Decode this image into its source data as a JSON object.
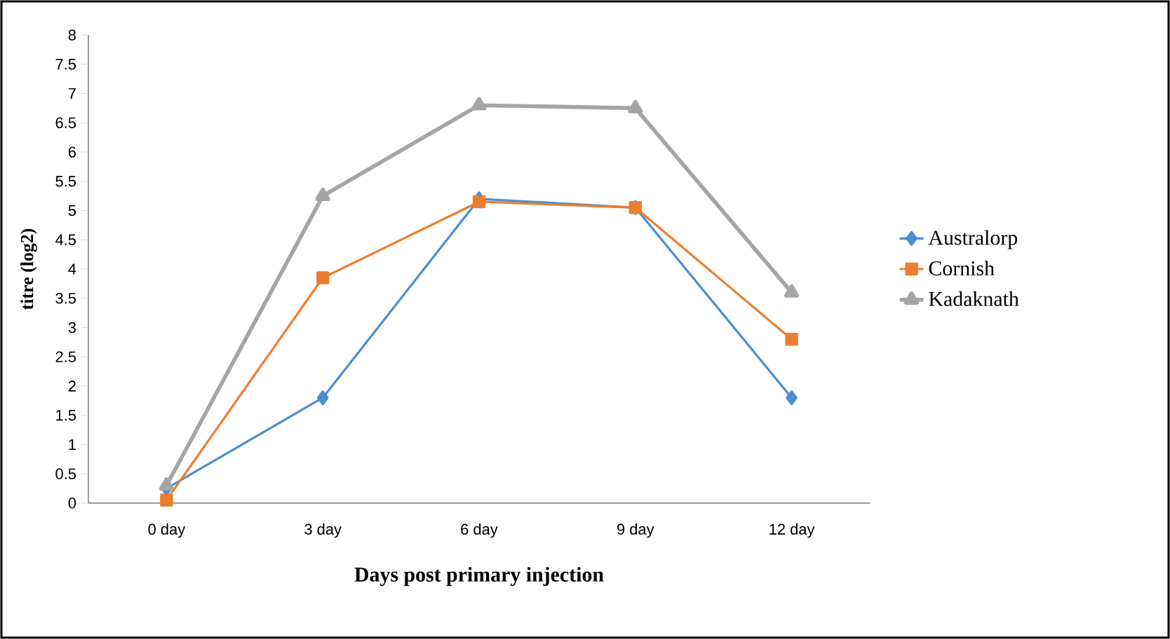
{
  "chart_data": {
    "type": "line",
    "xlabel": "Days post primary injection",
    "ylabel": "titre (log2)",
    "categories": [
      "0 day",
      "3 day",
      "6 day",
      "9 day",
      "12 day"
    ],
    "series": [
      {
        "name": "Australorp",
        "color": "#4a8fd0",
        "marker": "diamond",
        "values": [
          0.25,
          1.8,
          5.2,
          5.05,
          1.8
        ]
      },
      {
        "name": "Cornish",
        "color": "#ed7d31",
        "marker": "square",
        "values": [
          0.05,
          3.85,
          5.15,
          5.05,
          2.8
        ]
      },
      {
        "name": "Kadaknath",
        "color": "#a5a5a5",
        "marker": "triangle",
        "values": [
          0.3,
          5.25,
          6.8,
          6.75,
          3.6
        ]
      }
    ],
    "ylim": [
      0,
      8
    ],
    "yticks": [
      0,
      0.5,
      1,
      1.5,
      2,
      2.5,
      3,
      3.5,
      4,
      4.5,
      5,
      5.5,
      6,
      6.5,
      7,
      7.5,
      8
    ],
    "grid": false,
    "legend": "right",
    "line_style": "solid"
  }
}
